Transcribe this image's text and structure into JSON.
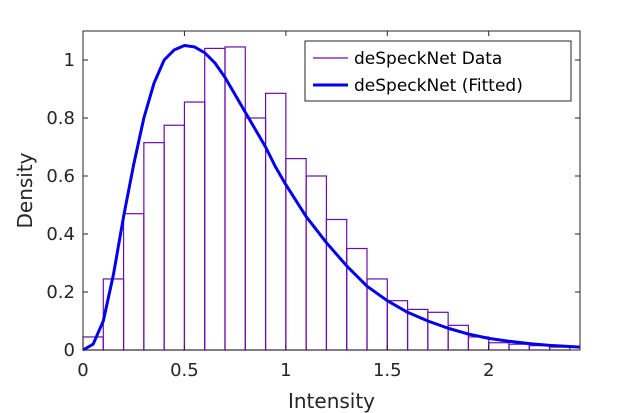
{
  "chart_data": {
    "type": "histogram-with-fit",
    "xlabel": "Intensity",
    "ylabel": "Density",
    "xlim": [
      0,
      2.45
    ],
    "ylim": [
      0,
      1.1
    ],
    "xticks": [
      0,
      0.5,
      1,
      1.5,
      2
    ],
    "yticks": [
      0,
      0.2,
      0.4,
      0.6,
      0.8,
      1
    ],
    "xtick_labels": [
      "0",
      "0.5",
      "1",
      "1.5",
      "2"
    ],
    "ytick_labels": [
      "0",
      "0.2",
      "0.4",
      "0.6",
      "0.8",
      "1"
    ],
    "grid": false,
    "legend_position": "top-right",
    "series": [
      {
        "name": "deSpeckNet Data",
        "kind": "histogram",
        "color": "#6a0dad",
        "bin_edges": [
          0,
          0.1,
          0.2,
          0.3,
          0.4,
          0.5,
          0.6,
          0.7,
          0.8,
          0.9,
          1.0,
          1.1,
          1.2,
          1.3,
          1.4,
          1.5,
          1.6,
          1.7,
          1.8,
          1.9,
          2.0,
          2.1,
          2.2,
          2.3,
          2.4
        ],
        "values": [
          0.045,
          0.245,
          0.47,
          0.715,
          0.775,
          0.855,
          1.04,
          1.045,
          0.8,
          0.885,
          0.66,
          0.6,
          0.45,
          0.35,
          0.245,
          0.17,
          0.14,
          0.13,
          0.085,
          0.045,
          0.025,
          0.02,
          0.015,
          0.01
        ]
      },
      {
        "name": "deSpeckNet (Fitted)",
        "kind": "line",
        "color": "#0000ee",
        "x": [
          0,
          0.05,
          0.1,
          0.15,
          0.2,
          0.25,
          0.3,
          0.35,
          0.4,
          0.45,
          0.5,
          0.55,
          0.6,
          0.65,
          0.7,
          0.75,
          0.8,
          0.85,
          0.9,
          0.95,
          1.0,
          1.1,
          1.2,
          1.3,
          1.4,
          1.5,
          1.6,
          1.7,
          1.8,
          1.9,
          2.0,
          2.1,
          2.2,
          2.3,
          2.4,
          2.45
        ],
        "y": [
          0,
          0.02,
          0.1,
          0.26,
          0.46,
          0.64,
          0.8,
          0.92,
          1.0,
          1.035,
          1.05,
          1.045,
          1.025,
          0.99,
          0.94,
          0.88,
          0.82,
          0.76,
          0.7,
          0.63,
          0.57,
          0.46,
          0.37,
          0.29,
          0.22,
          0.17,
          0.13,
          0.1,
          0.075,
          0.055,
          0.04,
          0.03,
          0.022,
          0.016,
          0.012,
          0.01
        ]
      }
    ]
  }
}
